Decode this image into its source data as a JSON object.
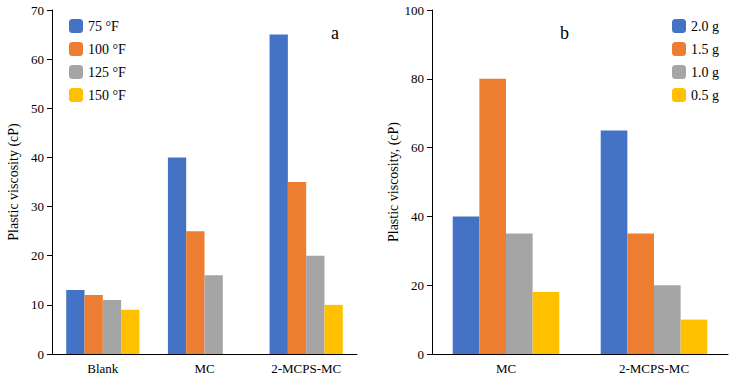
{
  "chart_data": [
    {
      "type": "bar",
      "y_label": "Plastic viscosity (cP)",
      "annotations": [
        "a"
      ],
      "categories": [
        "Blank",
        "MC",
        "2-MCPS-MC"
      ],
      "series": [
        {
          "name": "75 °F",
          "color": "#4472c4",
          "values": [
            13,
            40,
            65
          ]
        },
        {
          "name": "100 °F",
          "color": "#ed7d31",
          "values": [
            12,
            25,
            35
          ]
        },
        {
          "name": "125 °F",
          "color": "#a5a5a5",
          "values": [
            11,
            16,
            20
          ]
        },
        {
          "name": "150 °F",
          "color": "#ffc000",
          "values": [
            9,
            null,
            10
          ]
        }
      ],
      "ylim": [
        0,
        70
      ],
      "yticks": [
        0,
        10,
        20,
        30,
        40,
        50,
        60,
        70
      ],
      "grid": false,
      "legend": "upper left"
    },
    {
      "type": "bar",
      "y_label": "Plastic viscosity, (cP)",
      "annotations": [
        "b"
      ],
      "categories": [
        "MC",
        "2-MCPS-MC"
      ],
      "series": [
        {
          "name": "2.0 g",
          "color": "#4472c4",
          "values": [
            40,
            65
          ]
        },
        {
          "name": "1.5 g",
          "color": "#ed7d31",
          "values": [
            80,
            35
          ]
        },
        {
          "name": "1.0 g",
          "color": "#a5a5a5",
          "values": [
            35,
            20
          ]
        },
        {
          "name": "0.5 g",
          "color": "#ffc000",
          "values": [
            18,
            10
          ]
        }
      ],
      "ylim": [
        0,
        100
      ],
      "yticks": [
        0,
        20,
        40,
        60,
        80,
        100
      ],
      "grid": false,
      "legend": "upper right"
    }
  ]
}
